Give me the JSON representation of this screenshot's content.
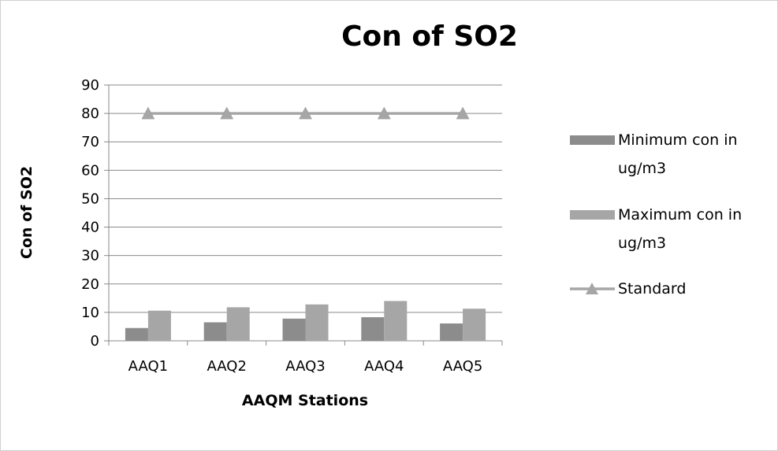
{
  "chart_data": {
    "type": "bar",
    "title": "Con of SO2",
    "xlabel": "AAQM Stations",
    "ylabel": "Con of SO2",
    "categories": [
      "AAQ1",
      "AAQ2",
      "AAQ3",
      "AAQ4",
      "AAQ5"
    ],
    "ylim": [
      0,
      90
    ],
    "yticks": [
      0,
      10,
      20,
      30,
      40,
      50,
      60,
      70,
      80,
      90
    ],
    "grid": true,
    "legend_position": "right",
    "series": [
      {
        "name": "Minimum con in ug/m3",
        "kind": "bar",
        "color": "#8c8c8c",
        "values": [
          4.5,
          6.5,
          7.8,
          8.3,
          6.1
        ]
      },
      {
        "name": "Maximum con in ug/m3",
        "kind": "bar",
        "color": "#a6a6a6",
        "values": [
          10.6,
          11.8,
          12.8,
          14.0,
          11.3
        ]
      },
      {
        "name": "Standard",
        "kind": "line",
        "marker": "triangle",
        "color": "#a6a6a6",
        "values": [
          80,
          80,
          80,
          80,
          80
        ]
      }
    ],
    "legend_lines": [
      [
        "Minimum con in",
        "ug/m3"
      ],
      [
        "Maximum con in",
        "ug/m3"
      ],
      [
        "Standard"
      ]
    ]
  }
}
